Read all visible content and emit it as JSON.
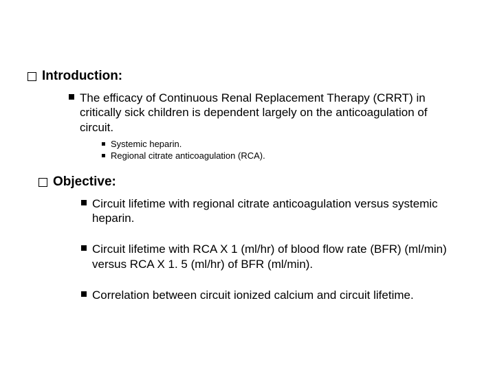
{
  "colors": {
    "background": "#ffffff",
    "text": "#000000"
  },
  "typography": {
    "heading_fontsize": 19,
    "body_fontsize": 17,
    "sub_fontsize": 13,
    "font_family": "Arial"
  },
  "introduction": {
    "heading": "Introduction:",
    "main_point": "The efficacy of Continuous Renal Replacement Therapy (CRRT) in critically sick children is dependent largely on the anticoagulation of circuit.",
    "sub_points": [
      "Systemic heparin.",
      "Regional citrate anticoagulation (RCA)."
    ]
  },
  "objective": {
    "heading": "Objective:",
    "points": [
      "Circuit lifetime with regional citrate anticoagulation versus systemic heparin.",
      "Circuit lifetime with RCA X 1 (ml/hr) of blood flow rate (BFR) (ml/min) versus RCA X 1. 5 (ml/hr) of BFR (ml/min).",
      "Correlation between circuit ionized calcium and circuit lifetime."
    ]
  }
}
